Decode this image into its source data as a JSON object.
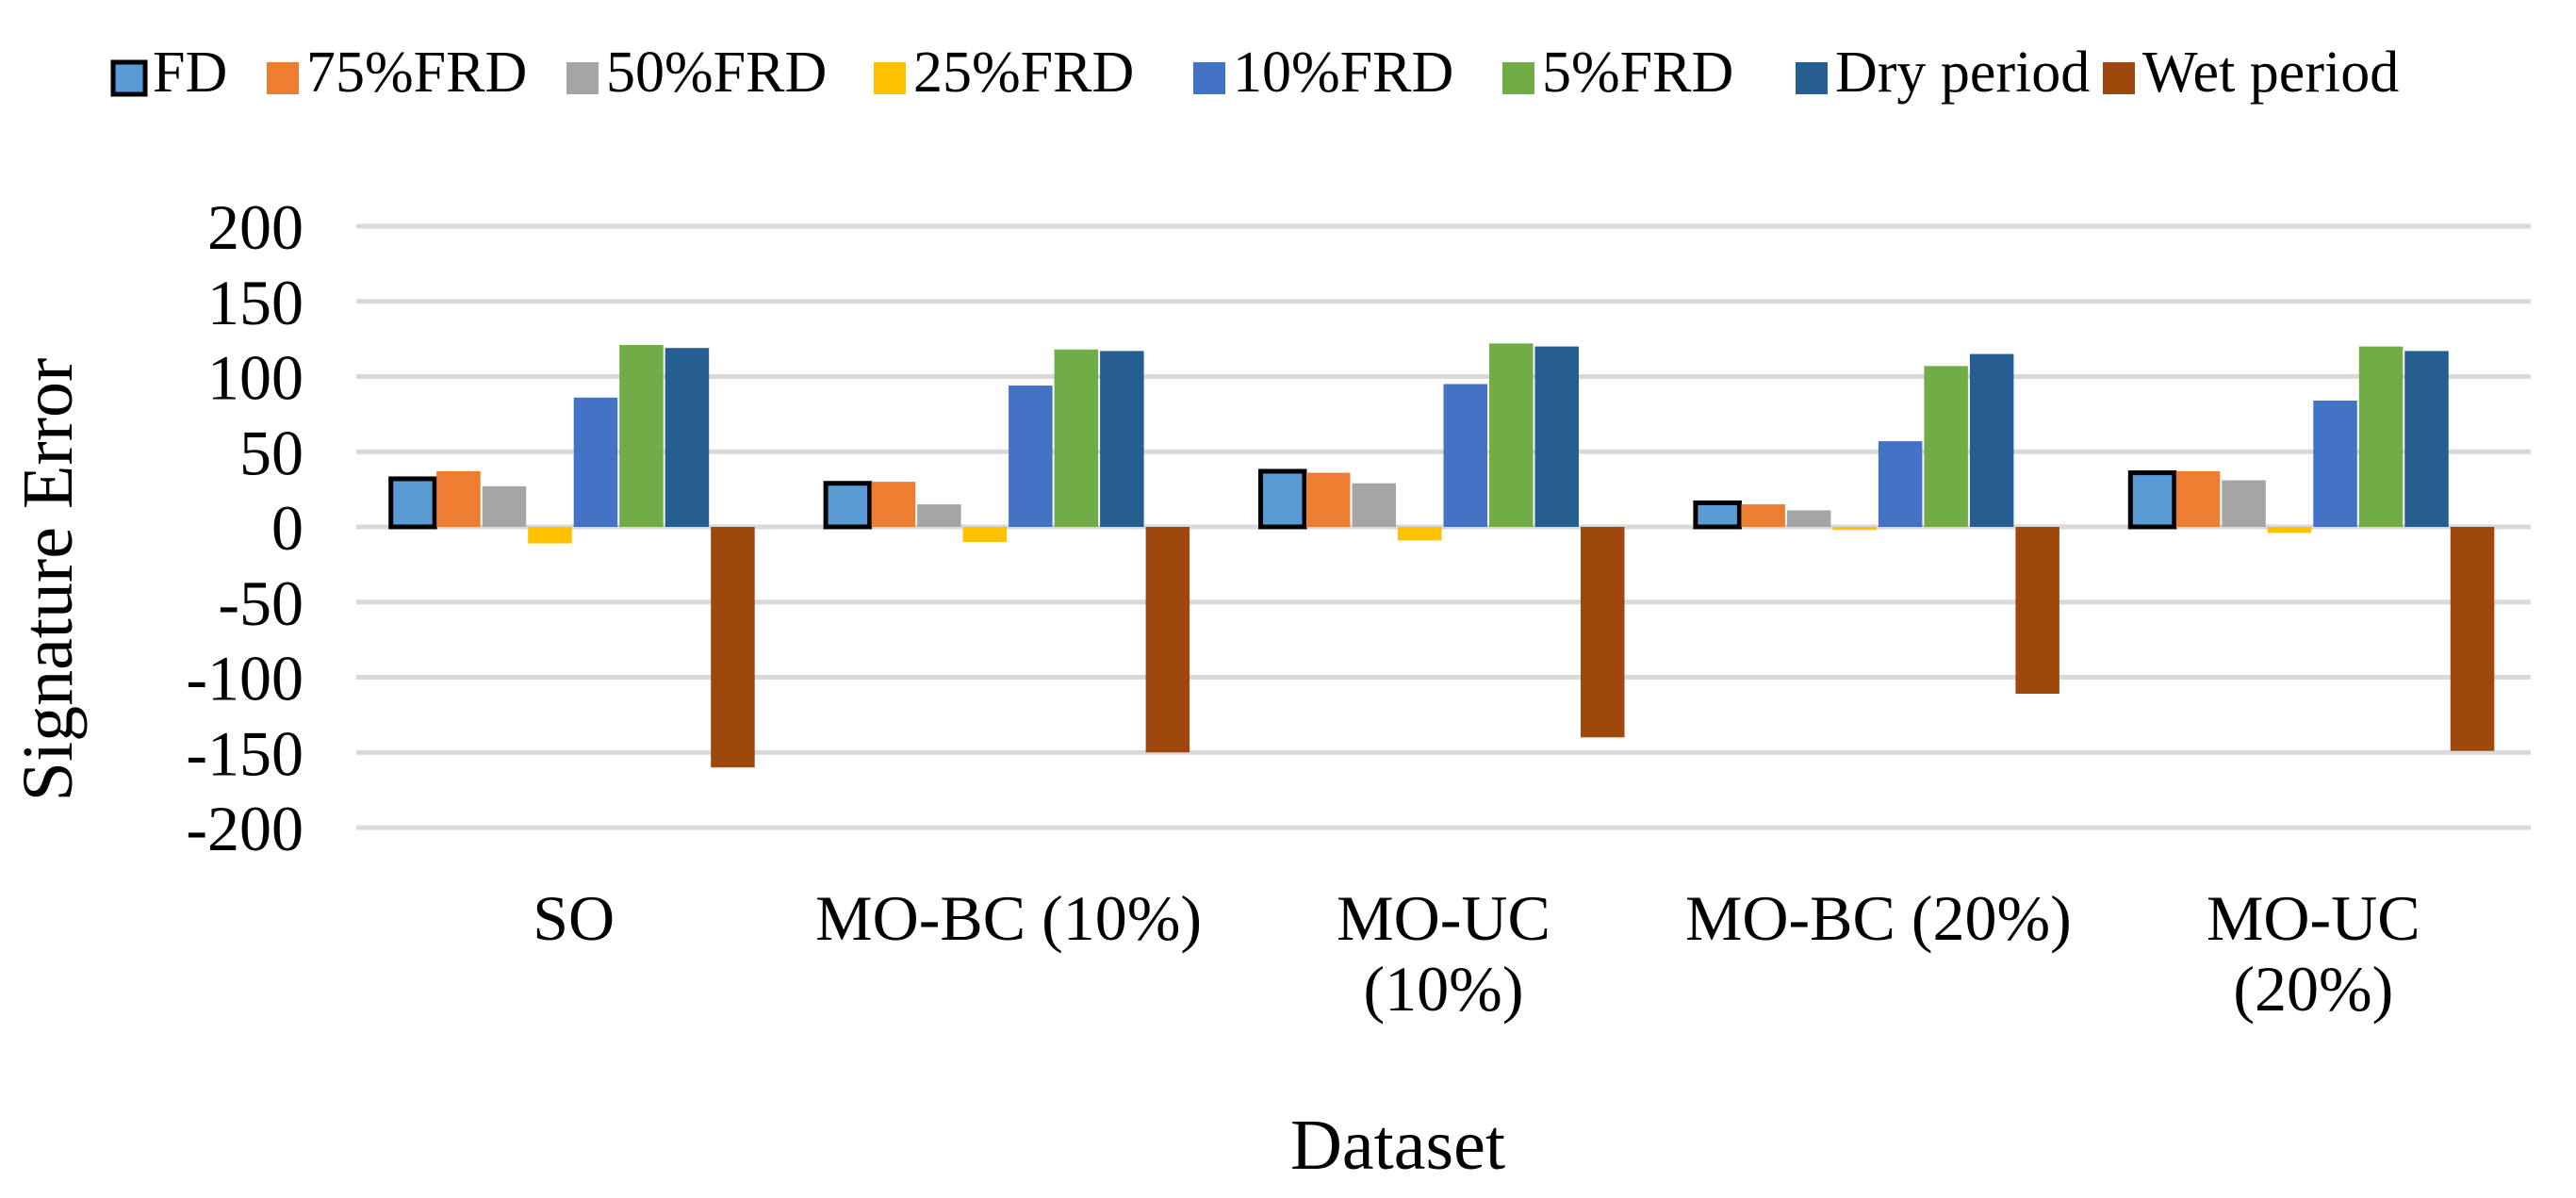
{
  "chart_data": {
    "type": "bar",
    "title": "",
    "xlabel": "Dataset",
    "ylabel": "Signature Error",
    "ylim": [
      -200,
      200
    ],
    "yticks": [
      200,
      150,
      100,
      50,
      0,
      -50,
      -100,
      -150,
      -200
    ],
    "ytick_labels": [
      "200",
      "150",
      "100",
      "50",
      "0",
      "-50",
      "-100",
      "-150",
      "-200"
    ],
    "grid": true,
    "legend_position": "top",
    "categories": [
      {
        "lines": [
          "SO"
        ]
      },
      {
        "lines": [
          "MO-BC (10%)"
        ]
      },
      {
        "lines": [
          "MO-UC",
          "(10%)"
        ]
      },
      {
        "lines": [
          "MO-BC (20%)"
        ]
      },
      {
        "lines": [
          "MO-UC",
          "(20%)"
        ]
      }
    ],
    "series": [
      {
        "name": "FD",
        "color": "#5B9BD5",
        "outline": "#000000",
        "values": [
          32,
          29,
          37,
          16,
          36
        ]
      },
      {
        "name": "75%FRD",
        "color": "#ED7D31",
        "values": [
          37,
          30,
          36,
          15,
          37
        ]
      },
      {
        "name": "50%FRD",
        "color": "#A5A5A5",
        "values": [
          27,
          15,
          29,
          11,
          31
        ]
      },
      {
        "name": "25%FRD",
        "color": "#FFC000",
        "values": [
          -11,
          -10,
          -9,
          -2,
          -4
        ]
      },
      {
        "name": "10%FRD",
        "color": "#4472C4",
        "values": [
          86,
          94,
          95,
          57,
          84
        ]
      },
      {
        "name": "5%FRD",
        "color": "#70AD47",
        "values": [
          121,
          118,
          122,
          107,
          120
        ]
      },
      {
        "name": "Dry period",
        "color": "#255E91",
        "values": [
          119,
          117,
          120,
          115,
          117
        ]
      },
      {
        "name": "Wet period",
        "color": "#9E480E",
        "values": [
          -160,
          -150,
          -140,
          -111,
          -149
        ]
      }
    ]
  }
}
